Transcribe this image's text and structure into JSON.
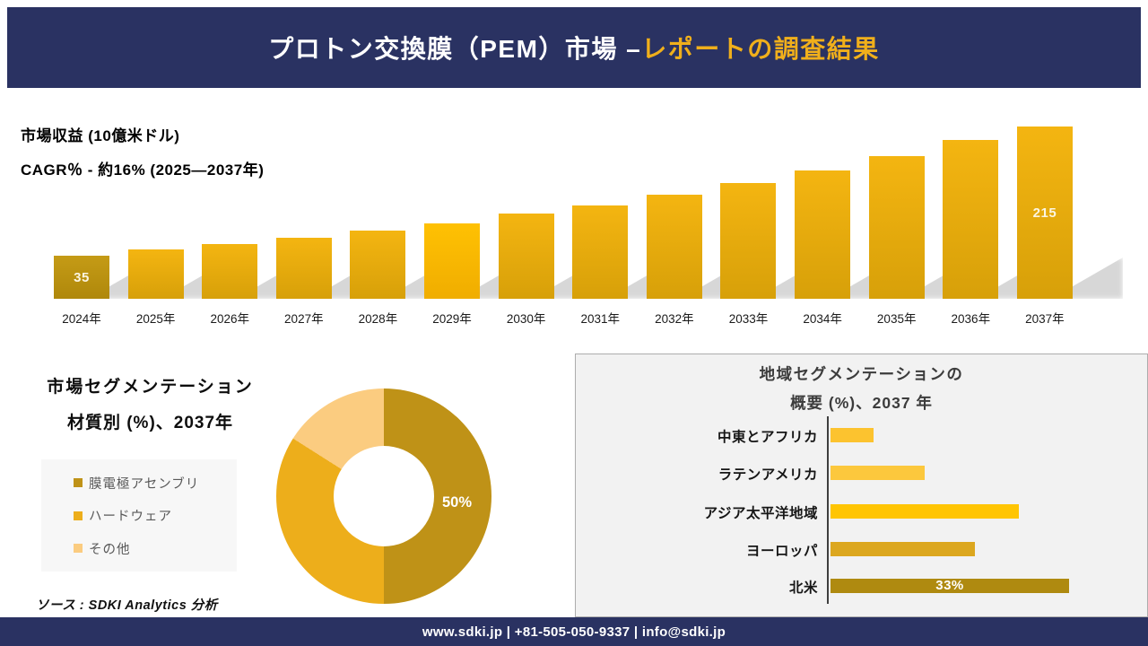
{
  "header": {
    "title_main": "プロトン交換膜（PEM）市場 –",
    "title_accent": "レポートの調査結果"
  },
  "revenue": {
    "metric_label": "市場収益 (10億米ドル)",
    "cagr_label": "CAGR％ - 約16% (2025―2037年)"
  },
  "material": {
    "title_line1": "市場セグメンテーション",
    "title_line2": "材質別 (%)、2037年",
    "center_label": "50%",
    "legend": [
      {
        "label": "膜電極アセンブリ",
        "color": "#BF9217"
      },
      {
        "label": "ハードウェア",
        "color": "#EDAE1B"
      },
      {
        "label": "その他",
        "color": "#FBCC80"
      }
    ]
  },
  "region": {
    "title_line1": "地域セグメンテーションの",
    "title_line2": "概要 (%)、2037 年"
  },
  "source_note": "ソース : SDKI Analytics 分析",
  "footer": {
    "text": "www.sdki.jp | +81-505-050-9337 | info@sdki.jp"
  },
  "colors": {
    "navy": "#2A3262",
    "accent_gold": "#F0AF1B",
    "bar_gold_top": "#F4B511",
    "bar_gold_bottom": "#D7A009"
  },
  "chart_data": [
    {
      "type": "bar",
      "title": "市場収益 (10億米ドル)",
      "subtitle": "CAGR％ - 約16% (2025―2037年)",
      "categories": [
        "2024年",
        "2025年",
        "2026年",
        "2027年",
        "2028年",
        "2029年",
        "2030年",
        "2031年",
        "2032年",
        "2033年",
        "2034年",
        "2035年",
        "2036年",
        "2037年"
      ],
      "values": [
        35,
        44,
        51,
        60,
        70,
        80,
        94,
        105,
        120,
        136,
        154,
        174,
        196,
        215
      ],
      "visible_value_labels": {
        "2024年": "35",
        "2037年": "215"
      },
      "ylim": [
        0,
        215
      ],
      "grid": false,
      "legend": "none",
      "bar_gradient": [
        "#F4B511",
        "#D7A009"
      ],
      "highlight_gradients": {
        "2024年": [
          "#C59B16",
          "#AF880B"
        ],
        "2029年": [
          "#FFC103",
          "#F0AD00"
        ]
      }
    },
    {
      "type": "pie",
      "subtype": "donut",
      "title": "市場セグメンテーション 材質別 (%)、2037年",
      "labels": [
        "膜電極アセンブリ",
        "ハードウェア",
        "その他"
      ],
      "values": [
        50,
        34,
        16
      ],
      "colors": [
        "#BF9217",
        "#EDAE1B",
        "#FBCC80"
      ],
      "visible_value_labels": {
        "膜電極アセンブリ": "50%"
      },
      "legend_position": "left"
    },
    {
      "type": "bar",
      "orientation": "horizontal",
      "title": "地域セグメンテーションの概要 (%)、2037 年",
      "categories": [
        "中東とアフリカ",
        "ラテンアメリカ",
        "アジア太平洋地域",
        "ヨーロッパ",
        "北米"
      ],
      "values": [
        6,
        13,
        26,
        20,
        33
      ],
      "colors": [
        "#FCC32F",
        "#FCC83D",
        "#FFC503",
        "#DCA71F",
        "#AF8A10"
      ],
      "visible_value_labels": {
        "北米": "33%"
      },
      "grid": false,
      "legend": "none"
    }
  ]
}
